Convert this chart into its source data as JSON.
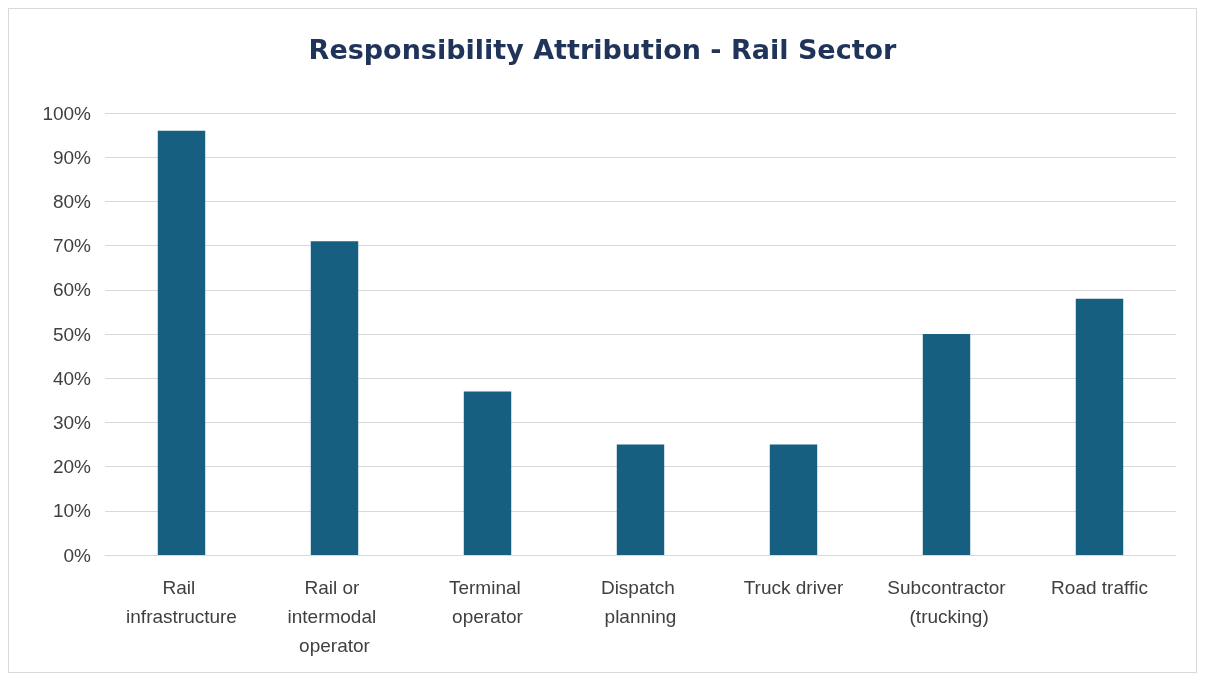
{
  "chart_data": {
    "type": "bar",
    "title": "Responsibility Attribution - Rail Sector",
    "categories": [
      "Rail infrastructure",
      "Rail or intermodal operator",
      "Terminal operator",
      "Dispatch planning",
      "Truck driver",
      "Subcontractor (trucking)",
      "Road traffic"
    ],
    "values": [
      96,
      71,
      37,
      25,
      25,
      50,
      58
    ],
    "color": "#165f80",
    "ylim": [
      0,
      100
    ],
    "yticks": [
      {
        "value": 0,
        "label": "0%"
      },
      {
        "value": 10,
        "label": "10%"
      },
      {
        "value": 20,
        "label": "20%"
      },
      {
        "value": 30,
        "label": "30%"
      },
      {
        "value": 40,
        "label": "40%"
      },
      {
        "value": 50,
        "label": "50%"
      },
      {
        "value": 60,
        "label": "60%"
      },
      {
        "value": 70,
        "label": "70%"
      },
      {
        "value": 80,
        "label": "80%"
      },
      {
        "value": 90,
        "label": "90%"
      },
      {
        "value": 100,
        "label": "100%"
      }
    ],
    "grid": true
  }
}
